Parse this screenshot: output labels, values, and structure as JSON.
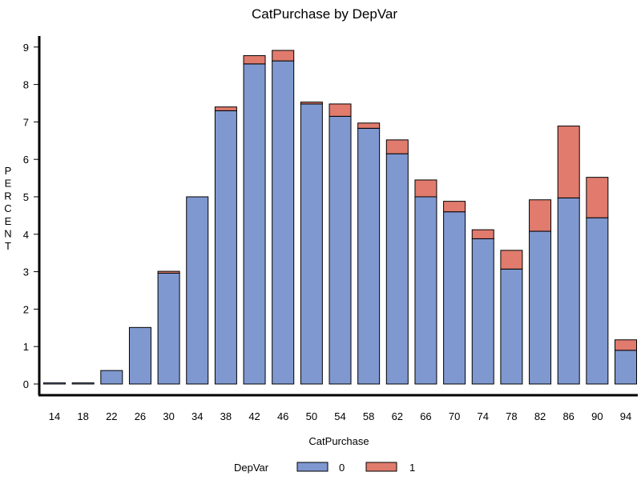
{
  "chart_data": {
    "type": "bar",
    "stacked": true,
    "title": "CatPurchase by DepVar",
    "xlabel": "CatPurchase",
    "ylabel": "PERCENT",
    "ylim": [
      0,
      9
    ],
    "yticks": [
      "0",
      "1",
      "2",
      "3",
      "4",
      "5",
      "6",
      "7",
      "8",
      "9"
    ],
    "grid": false,
    "legend": {
      "title": "DepVar",
      "position": "bottom"
    },
    "categories": [
      "14",
      "18",
      "22",
      "26",
      "30",
      "34",
      "38",
      "42",
      "46",
      "50",
      "54",
      "58",
      "62",
      "66",
      "70",
      "74",
      "78",
      "82",
      "86",
      "90",
      "94"
    ],
    "series": [
      {
        "name": "0",
        "color": "#7f98d0",
        "values": [
          0.03,
          0.03,
          0.36,
          1.51,
          2.96,
          5.0,
          7.3,
          8.55,
          8.63,
          7.48,
          7.15,
          6.83,
          6.15,
          5.0,
          4.6,
          3.88,
          3.07,
          4.08,
          4.97,
          4.44,
          0.9
        ]
      },
      {
        "name": "1",
        "color": "#e07b6d",
        "values": [
          0.0,
          0.0,
          0.0,
          0.0,
          0.05,
          0.0,
          0.1,
          0.22,
          0.28,
          0.05,
          0.33,
          0.14,
          0.37,
          0.45,
          0.28,
          0.24,
          0.5,
          0.84,
          1.92,
          1.08,
          0.28
        ]
      }
    ]
  }
}
